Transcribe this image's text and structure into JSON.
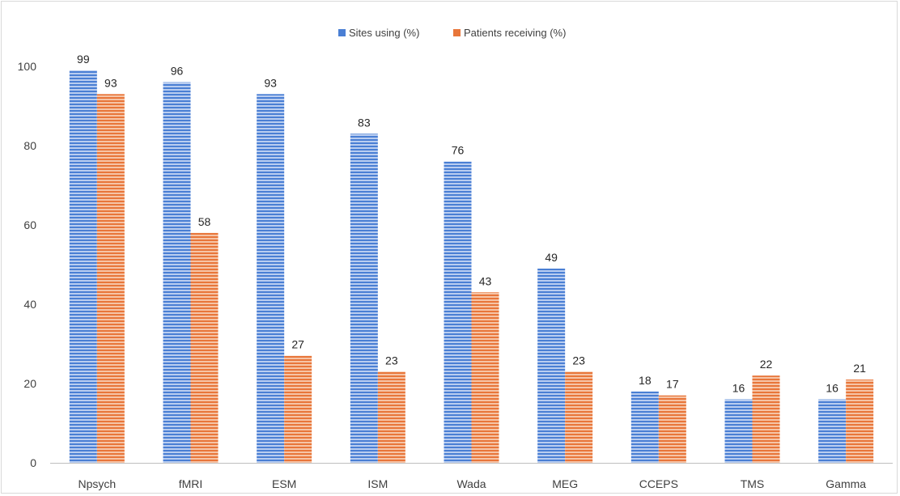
{
  "chart_data": {
    "type": "bar",
    "categories": [
      "Npsych",
      "fMRI",
      "ESM",
      "ISM",
      "Wada",
      "MEG",
      "CCEPS",
      "TMS",
      "Gamma"
    ],
    "series": [
      {
        "name": "Sites using (%)",
        "values": [
          99,
          96,
          93,
          83,
          76,
          49,
          18,
          16,
          16
        ],
        "color": "#4a7fd4"
      },
      {
        "name": "Patients receiving (%)",
        "values": [
          93,
          58,
          27,
          23,
          43,
          23,
          17,
          22,
          21
        ],
        "color": "#e8763a"
      }
    ],
    "ylim": [
      0,
      100
    ],
    "yticks": [
      0,
      20,
      40,
      60,
      80,
      100
    ],
    "legend_position": "top-center",
    "grid": false,
    "bar_pattern": "horizontal-stripes",
    "data_labels": true
  }
}
